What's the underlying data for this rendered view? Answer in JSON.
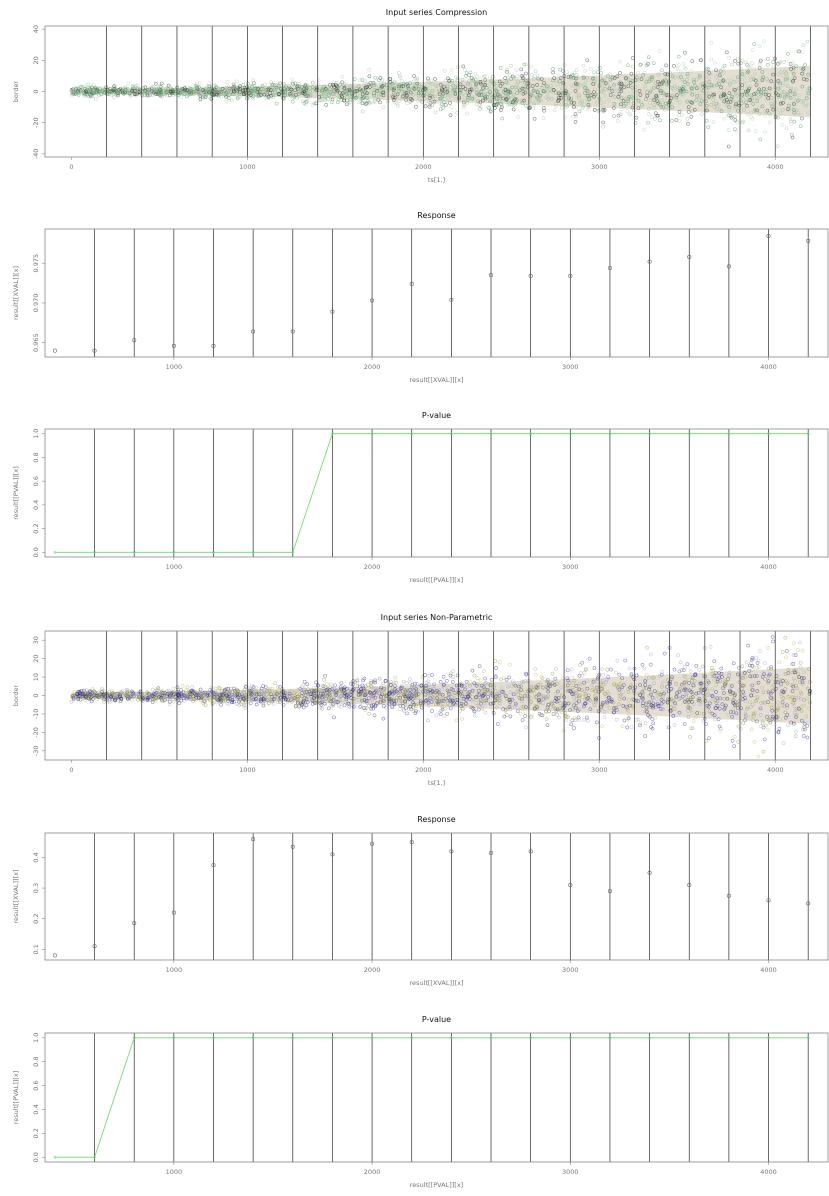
{
  "colors": {
    "band": "#e3ddd2",
    "vline": "#2b2b2b",
    "pline": "#66dd66",
    "point": "#666666",
    "comp_pts": [
      "#2e8b57",
      "#1a1a1a",
      "#7ab87a",
      "#9acd9a",
      "#bbbbbb"
    ],
    "np_pts": [
      "#2a2aa0",
      "#1c1c7a",
      "#8c8c2a",
      "#b8b850",
      "#9999cc"
    ]
  },
  "chart_data": [
    {
      "type": "scatter",
      "title": "Input series Compression",
      "xlabel": "ts[1,]",
      "ylabel": "border",
      "xlim": [
        -150,
        4300
      ],
      "ylim": [
        -42,
        42
      ],
      "xticks": [
        0,
        1000,
        2000,
        3000,
        4000
      ],
      "yticks": [
        -40,
        -20,
        0,
        20,
        40
      ],
      "vlines": [
        200,
        400,
        600,
        800,
        1000,
        1200,
        1400,
        1600,
        1800,
        2000,
        2200,
        2400,
        2600,
        2800,
        3000,
        3200,
        3400,
        3600,
        3800,
        4000,
        4200
      ],
      "x_range": [
        0,
        4200
      ],
      "spread": {
        "start": 3,
        "end": 30
      },
      "note": "dense cloud of points widening with x"
    },
    {
      "type": "scatter",
      "title": "Response",
      "xlabel": "result[[XVAL]][x]",
      "ylabel": "result[[XVAL]][x]",
      "xlim": [
        350,
        4300
      ],
      "ylim": [
        0.9632,
        0.9793
      ],
      "xticks": [
        1000,
        2000,
        3000,
        4000
      ],
      "yticks": [
        0.965,
        0.97,
        0.975
      ],
      "ytick_labels": [
        "0.965",
        "0.970",
        "0.975"
      ],
      "vlines": [
        600,
        800,
        1000,
        1200,
        1400,
        1600,
        1800,
        2000,
        2200,
        2400,
        2600,
        2800,
        3000,
        3200,
        3400,
        3600,
        3800,
        4000,
        4200
      ],
      "x": [
        400,
        600,
        800,
        1000,
        1200,
        1400,
        1600,
        1800,
        2000,
        2200,
        2400,
        2600,
        2800,
        3000,
        3200,
        3400,
        3600,
        3800,
        4000,
        4200
      ],
      "y": [
        0.964,
        0.964,
        0.9653,
        0.9646,
        0.9646,
        0.9664,
        0.9664,
        0.9689,
        0.9703,
        0.9724,
        0.9704,
        0.9735,
        0.9734,
        0.9734,
        0.9744,
        0.9752,
        0.9758,
        0.9746,
        0.9784,
        0.9778
      ]
    },
    {
      "type": "line",
      "title": "P-value",
      "xlabel": "result[[PVAL]][x]",
      "ylabel": "result[[PVAL]][x]",
      "xlim": [
        350,
        4300
      ],
      "ylim": [
        -0.04,
        1.04
      ],
      "xticks": [
        1000,
        2000,
        3000,
        4000
      ],
      "yticks": [
        0.0,
        0.2,
        0.4,
        0.6,
        0.8,
        1.0
      ],
      "ytick_labels": [
        "0.0",
        "0.2",
        "0.4",
        "0.6",
        "0.8",
        "1.0"
      ],
      "vlines": [
        600,
        800,
        1000,
        1200,
        1400,
        1600,
        1800,
        2000,
        2200,
        2400,
        2600,
        2800,
        3000,
        3200,
        3400,
        3600,
        3800,
        4000,
        4200
      ],
      "x": [
        400,
        600,
        800,
        1000,
        1200,
        1400,
        1600,
        1800,
        2000,
        2200,
        2400,
        2600,
        2800,
        3000,
        3200,
        3400,
        3600,
        3800,
        4000,
        4200
      ],
      "y": [
        0,
        0,
        0,
        0,
        0,
        0,
        0,
        1,
        1,
        1,
        1,
        1,
        1,
        1,
        1,
        1,
        1,
        1,
        1,
        1
      ]
    },
    {
      "type": "scatter",
      "title": "Input series Non-Parametric",
      "xlabel": "ts[1,]",
      "ylabel": "border",
      "xlim": [
        -150,
        4300
      ],
      "ylim": [
        -35,
        35
      ],
      "xticks": [
        0,
        1000,
        2000,
        3000,
        4000
      ],
      "yticks": [
        -30,
        -20,
        -10,
        0,
        10,
        20,
        30
      ],
      "vlines": [
        200,
        400,
        600,
        800,
        1000,
        1200,
        1400,
        1600,
        1800,
        2000,
        2200,
        2400,
        2600,
        2800,
        3000,
        3200,
        3400,
        3600,
        3800,
        4000,
        4200
      ],
      "x_range": [
        0,
        4200
      ],
      "spread": {
        "start": 3,
        "end": 28
      },
      "note": "dense cloud of points widening with x"
    },
    {
      "type": "scatter",
      "title": "Response",
      "xlabel": "result[[XVAL]][x]",
      "ylabel": "result[[XVAL]][x]",
      "xlim": [
        350,
        4300
      ],
      "ylim": [
        0.065,
        0.48
      ],
      "xticks": [
        1000,
        2000,
        3000,
        4000
      ],
      "yticks": [
        0.1,
        0.2,
        0.3,
        0.4
      ],
      "ytick_labels": [
        "0.1",
        "0.2",
        "0.3",
        "0.4"
      ],
      "vlines": [
        600,
        800,
        1000,
        1200,
        1400,
        1600,
        1800,
        2000,
        2200,
        2400,
        2600,
        2800,
        3000,
        3200,
        3400,
        3600,
        3800,
        4000,
        4200
      ],
      "x": [
        400,
        600,
        800,
        1000,
        1200,
        1400,
        1600,
        1800,
        2000,
        2200,
        2400,
        2600,
        2800,
        3000,
        3200,
        3400,
        3600,
        3800,
        4000,
        4200
      ],
      "y": [
        0.08,
        0.11,
        0.185,
        0.22,
        0.375,
        0.46,
        0.435,
        0.41,
        0.445,
        0.45,
        0.42,
        0.415,
        0.42,
        0.31,
        0.29,
        0.35,
        0.31,
        0.275,
        0.26,
        0.25
      ]
    },
    {
      "type": "line",
      "title": "P-value",
      "xlabel": "result[[PVAL]][x]",
      "ylabel": "result[[PVAL]][x]",
      "xlim": [
        350,
        4300
      ],
      "ylim": [
        -0.04,
        1.04
      ],
      "xticks": [
        1000,
        2000,
        3000,
        4000
      ],
      "yticks": [
        0.0,
        0.2,
        0.4,
        0.6,
        0.8,
        1.0
      ],
      "ytick_labels": [
        "0.0",
        "0.2",
        "0.4",
        "0.6",
        "0.8",
        "1.0"
      ],
      "vlines": [
        600,
        800,
        1000,
        1200,
        1400,
        1600,
        1800,
        2000,
        2200,
        2400,
        2600,
        2800,
        3000,
        3200,
        3400,
        3600,
        3800,
        4000,
        4200
      ],
      "x": [
        400,
        600,
        800,
        1000,
        1200,
        1400,
        1600,
        1800,
        2000,
        2200,
        2400,
        2600,
        2800,
        3000,
        3200,
        3400,
        3600,
        3800,
        4000,
        4200
      ],
      "y": [
        0,
        0,
        1,
        1,
        1,
        1,
        1,
        1,
        1,
        1,
        1,
        1,
        1,
        1,
        1,
        1,
        1,
        1,
        1,
        1
      ]
    }
  ]
}
